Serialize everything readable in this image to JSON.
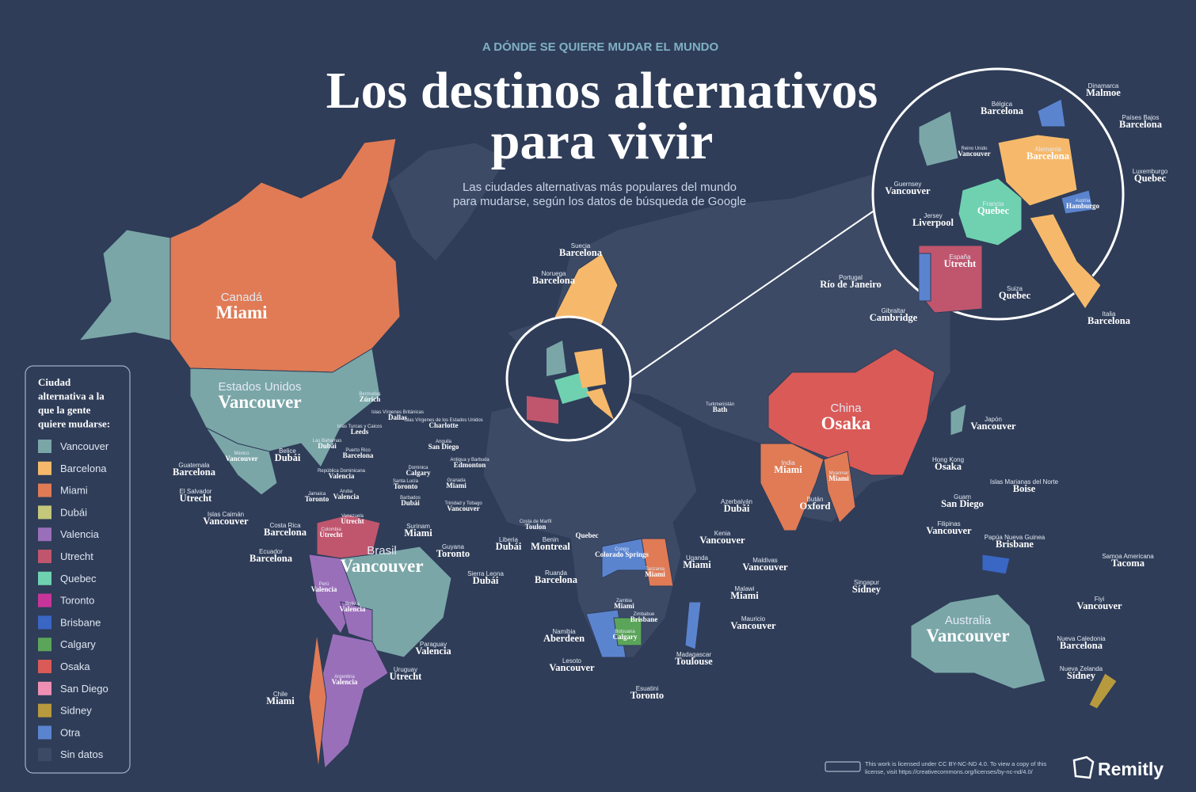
{
  "header": {
    "kicker": "A DÓNDE SE QUIERE MUDAR EL MUNDO",
    "title_line1": "Los destinos alternativos",
    "title_line2": "para vivir",
    "subtitle_line1": "Las ciudades alternativas más populares del mundo",
    "subtitle_line2": "para mudarse, según los datos de búsqueda de Google"
  },
  "legend": {
    "title_lines": [
      "Ciudad",
      "alternativa a la",
      "que la gente",
      "quiere mudarse:"
    ],
    "items": [
      {
        "label": "Vancouver",
        "color": "#7aa6a8"
      },
      {
        "label": "Barcelona",
        "color": "#f6b96b"
      },
      {
        "label": "Miami",
        "color": "#e07b55"
      },
      {
        "label": "Dubái",
        "color": "#c5c77a"
      },
      {
        "label": "Valencia",
        "color": "#9a6fba"
      },
      {
        "label": "Utrecht",
        "color": "#c0566e"
      },
      {
        "label": "Quebec",
        "color": "#6fd1b0"
      },
      {
        "label": "Toronto",
        "color": "#c8359a"
      },
      {
        "label": "Brisbane",
        "color": "#3a66c4"
      },
      {
        "label": "Calgary",
        "color": "#5ba55a"
      },
      {
        "label": "Osaka",
        "color": "#d95a57"
      },
      {
        "label": "San Diego",
        "color": "#f08fb4"
      },
      {
        "label": "Sidney",
        "color": "#b89a3e"
      },
      {
        "label": "Otra",
        "color": "#5b84cf"
      },
      {
        "label": "Sin datos",
        "color": "#3c4a66"
      }
    ]
  },
  "labels": [
    {
      "country": "Canadá",
      "city": "Miami"
    },
    {
      "country": "Estados Unidos",
      "city": "Vancouver"
    },
    {
      "country": "Brasil",
      "city": "Vancouver"
    },
    {
      "country": "China",
      "city": "Osaka"
    },
    {
      "country": "Australia",
      "city": "Vancouver"
    },
    {
      "country": "India",
      "city": "Miami"
    },
    {
      "country": "Bermudas",
      "city": "Zúrich"
    },
    {
      "country": "Islas Vírgenes Británicas",
      "city": "Dallas"
    },
    {
      "country": "Islas Vírgenes de los Estados Unidos",
      "city": "Charlotte"
    },
    {
      "country": "Anguila",
      "city": "San Diego"
    },
    {
      "country": "Antigua y Barbuda",
      "city": "Edmonton"
    },
    {
      "country": "Dominica",
      "city": "Calgary"
    },
    {
      "country": "Santa Lucía",
      "city": "Toronto"
    },
    {
      "country": "Granada",
      "city": "Miami"
    },
    {
      "country": "Barbados",
      "city": "Dubái"
    },
    {
      "country": "Trinidad y Tobago",
      "city": "Vancouver"
    },
    {
      "country": "Las Bahamas",
      "city": "Dubái"
    },
    {
      "country": "Islas Turcas y Caicos",
      "city": "Leeds"
    },
    {
      "country": "Puerto Rico",
      "city": "Barcelona"
    },
    {
      "country": "República Dominicana",
      "city": "Valencia"
    },
    {
      "country": "Aruba",
      "city": "Valencia"
    },
    {
      "country": "Jamaica",
      "city": "Toronto"
    },
    {
      "country": "México",
      "city": "Vancouver"
    },
    {
      "country": "Belice",
      "city": "Dubái"
    },
    {
      "country": "Guatemala",
      "city": "Barcelona"
    },
    {
      "country": "El Salvador",
      "city": "Utrecht"
    },
    {
      "country": "Islas Caimán",
      "city": "Vancouver"
    },
    {
      "country": "Costa Rica",
      "city": "Barcelona"
    },
    {
      "country": "Ecuador",
      "city": "Barcelona"
    },
    {
      "country": "Venezuela",
      "city": "Utrecht"
    },
    {
      "country": "Colombia",
      "city": "Utrecht"
    },
    {
      "country": "Surinam",
      "city": "Miami"
    },
    {
      "country": "Guyana",
      "city": "Toronto"
    },
    {
      "country": "Perú",
      "city": "Valencia"
    },
    {
      "country": "Bolivia",
      "city": "Valencia"
    },
    {
      "country": "Paraguay",
      "city": "Valencia"
    },
    {
      "country": "Uruguay",
      "city": "Utrecht"
    },
    {
      "country": "Argentina",
      "city": "Valencia"
    },
    {
      "country": "Chile",
      "city": "Miami"
    },
    {
      "country": "Suecia",
      "city": "Barcelona"
    },
    {
      "country": "Noruega",
      "city": "Barcelona"
    },
    {
      "country": "Bélgica",
      "city": "Barcelona"
    },
    {
      "country": "Dinamarca",
      "city": "Malmoe"
    },
    {
      "country": "Países Bajos",
      "city": "Barcelona"
    },
    {
      "country": "Reino Unido",
      "city": "Vancouver"
    },
    {
      "country": "Alemania",
      "city": "Barcelona"
    },
    {
      "country": "Luxemburgo",
      "city": "Quebec"
    },
    {
      "country": "Guernsey",
      "city": "Vancouver"
    },
    {
      "country": "Francia",
      "city": "Quebec"
    },
    {
      "country": "Austria",
      "city": "Hamburgo"
    },
    {
      "country": "Jersey",
      "city": "Liverpool"
    },
    {
      "country": "España",
      "city": "Utrecht"
    },
    {
      "country": "Portugal",
      "city": "Río de Janeiro"
    },
    {
      "country": "Suiza",
      "city": "Quebec"
    },
    {
      "country": "Gibraltar",
      "city": "Cambridge"
    },
    {
      "country": "Italia",
      "city": "Barcelona"
    },
    {
      "country": "Turkmenistán",
      "city": "Bath"
    },
    {
      "country": "Azerbaiyán",
      "city": "Dubái"
    },
    {
      "country": "Japón",
      "city": "Vancouver"
    },
    {
      "country": "Hong Kong",
      "city": "Osaka"
    },
    {
      "country": "Islas Marianas del Norte",
      "city": "Boise"
    },
    {
      "country": "Guam",
      "city": "San Diego"
    },
    {
      "country": "Filipinas",
      "city": "Vancouver"
    },
    {
      "country": "Papúa Nueva Guinea",
      "city": "Brisbane"
    },
    {
      "country": "Myanmar",
      "city": "Miami"
    },
    {
      "country": "Bután",
      "city": "Oxford"
    },
    {
      "country": "Singapur",
      "city": "Sídney"
    },
    {
      "country": "Samoa Americana",
      "city": "Tacoma"
    },
    {
      "country": "Fiyi",
      "city": "Vancouver"
    },
    {
      "country": "Nueva Caledonia",
      "city": "Barcelona"
    },
    {
      "country": "Nueva Zelanda",
      "city": "Sídney"
    },
    {
      "country": "Maldivas",
      "city": "Vancouver"
    },
    {
      "country": "Mauricio",
      "city": "Vancouver"
    },
    {
      "country": "Madagascar",
      "city": "Toulouse"
    },
    {
      "country": "Esuatini",
      "city": "Toronto"
    },
    {
      "country": "Lesoto",
      "city": "Vancouver"
    },
    {
      "country": "Namibia",
      "city": "Aberdeen"
    },
    {
      "country": "Botsuana",
      "city": "Calgary"
    },
    {
      "country": "Zimbabue",
      "city": "Brisbane"
    },
    {
      "country": "Zambia",
      "city": "Miami"
    },
    {
      "country": "Malawi",
      "city": "Miami"
    },
    {
      "country": "Tanzania",
      "city": "Miami"
    },
    {
      "country": "Uganda",
      "city": "Miami"
    },
    {
      "country": "Kenia",
      "city": "Vancouver"
    },
    {
      "country": "Ruanda",
      "city": "Barcelona"
    },
    {
      "country": "Congo",
      "city": "Colorado Springs"
    },
    {
      "country": "Benin",
      "city": "Montreal"
    },
    {
      "country": "Costa de Marfil",
      "city": "Toulon"
    },
    {
      "country": "Liberia",
      "city": "Dubái"
    },
    {
      "country": "Sierra Leona",
      "city": "Dubái"
    },
    {
      "city": "Quebec"
    }
  ],
  "footer": {
    "license_line1": "This work is licensed under CC BY-NC-ND 4.0. To view a copy of this",
    "license_line2": "license, visit https://creativecommons.org/licenses/by-nc-nd/4.0/",
    "brand": "Remitly"
  }
}
